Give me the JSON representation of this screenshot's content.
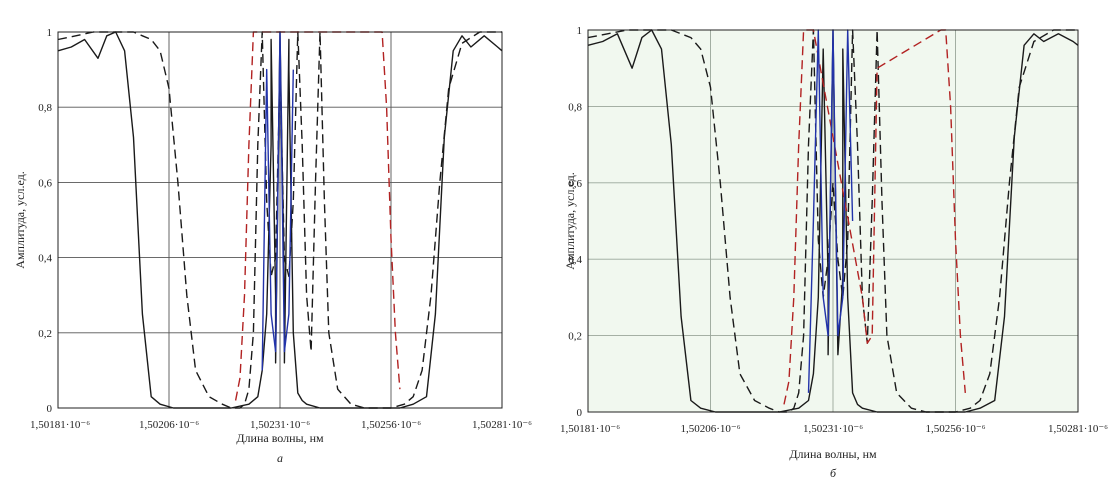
{
  "chart_data": [
    {
      "type": "line",
      "panel_label": "а",
      "xlabel": "Длина волны, нм",
      "ylabel": "Амплитуда, усл.ед.",
      "xlim": [
        1.50181,
        1.50281
      ],
      "ylim": [
        0,
        1
      ],
      "x_ticks": [
        1.50181,
        1.50206,
        1.50231,
        1.50256,
        1.50281
      ],
      "x_tick_labels": [
        "1,50181·10⁻⁶",
        "1,50206·10⁻⁶",
        "1,50231·10⁻⁶",
        "1,50256·10⁻⁶",
        "1,50281·10⁻⁶"
      ],
      "y_ticks": [
        0,
        0.2,
        0.4,
        0.6,
        0.8,
        1
      ],
      "y_tick_labels": [
        "0",
        "0,2",
        "0,4",
        "0,6",
        "0,8",
        "1"
      ],
      "background": "#ffffff",
      "grid": true,
      "series": [
        {
          "style": "solid",
          "color": "#1a1a1a",
          "x": [
            1.50181,
            1.50184,
            1.50187,
            1.5019,
            1.50192,
            1.50194,
            1.50196,
            1.50198,
            1.502,
            1.50202,
            1.50204,
            1.50207,
            1.5021,
            1.50215,
            1.5022,
            1.50224,
            1.50226,
            1.50227,
            1.50228,
            1.50229,
            1.50229,
            1.5023,
            1.5023,
            1.50231,
            1.50232,
            1.50232,
            1.50233,
            1.50233,
            1.50234,
            1.50235,
            1.50236,
            1.50237,
            1.5024,
            1.50245,
            1.5025,
            1.50255,
            1.50258,
            1.50261,
            1.50264,
            1.50266,
            1.50268,
            1.5027,
            1.50272,
            1.50274,
            1.50277,
            1.5028,
            1.50281
          ],
          "y": [
            0.95,
            0.96,
            0.98,
            0.93,
            0.99,
            1.0,
            0.95,
            0.72,
            0.25,
            0.03,
            0.01,
            0.0,
            0.0,
            0.0,
            0.0,
            0.01,
            0.03,
            0.1,
            0.25,
            0.7,
            0.98,
            0.3,
            0.12,
            1.0,
            0.3,
            0.12,
            0.98,
            0.9,
            0.2,
            0.04,
            0.02,
            0.01,
            0.0,
            0.0,
            0.0,
            0.0,
            0.0,
            0.01,
            0.03,
            0.25,
            0.72,
            0.95,
            0.99,
            0.96,
            0.99,
            0.96,
            0.95
          ]
        },
        {
          "style": "dashed",
          "color": "#1a1a1a",
          "x": [
            1.50181,
            1.50185,
            1.50189,
            1.50193,
            1.50196,
            1.50198,
            1.502,
            1.50202,
            1.50204,
            1.50206,
            1.50208,
            1.5021,
            1.50212,
            1.50215,
            1.50218,
            1.5022,
            1.50222,
            1.50223,
            1.50224,
            1.50225,
            1.50226,
            1.50227,
            1.50228,
            1.50229,
            1.5023,
            1.50231,
            1.50232,
            1.50233,
            1.50234,
            1.50235,
            1.50236,
            1.50237,
            1.50238,
            1.50239,
            1.5024,
            1.50241,
            1.50242,
            1.50244,
            1.50247,
            1.5025,
            1.50253,
            1.50256,
            1.50259,
            1.50261,
            1.50263,
            1.50265,
            1.50267,
            1.50269,
            1.50272,
            1.50276,
            1.50281
          ],
          "y": [
            0.98,
            0.99,
            1.0,
            1.0,
            1.0,
            1.0,
            0.99,
            0.98,
            0.95,
            0.85,
            0.6,
            0.3,
            0.1,
            0.03,
            0.01,
            0.0,
            0.0,
            0.01,
            0.05,
            0.2,
            0.7,
            1.0,
            0.55,
            0.35,
            0.4,
            0.9,
            0.4,
            0.35,
            0.55,
            1.0,
            0.7,
            0.3,
            0.15,
            0.6,
            1.0,
            0.55,
            0.2,
            0.05,
            0.01,
            0.0,
            0.0,
            0.0,
            0.01,
            0.03,
            0.1,
            0.3,
            0.6,
            0.85,
            0.97,
            1.0,
            1.0
          ]
        },
        {
          "style": "dashed",
          "color": "#b22222",
          "x": [
            1.50221,
            1.50222,
            1.50223,
            1.50224,
            1.50225,
            1.50226,
            1.50227,
            1.50253,
            1.50254,
            1.50255,
            1.50256,
            1.50257,
            1.50258
          ],
          "y": [
            0.02,
            0.08,
            0.3,
            0.7,
            1.0,
            1.0,
            1.0,
            1.0,
            1.0,
            0.8,
            0.45,
            0.2,
            0.05
          ]
        },
        {
          "style": "solid",
          "color": "#2233aa",
          "x": [
            1.50227,
            1.50228,
            1.50229,
            1.5023,
            1.50231,
            1.50232,
            1.50233,
            1.50234
          ],
          "y": [
            0.1,
            0.9,
            0.25,
            0.15,
            1.0,
            0.15,
            0.25,
            0.9
          ]
        }
      ]
    },
    {
      "type": "line",
      "panel_label": "б",
      "xlabel": "Длина волны, нм",
      "ylabel": "Амплитуда, усл.ед.",
      "xlim": [
        1.50181,
        1.50281
      ],
      "ylim": [
        0,
        1
      ],
      "x_ticks": [
        1.50181,
        1.50206,
        1.50231,
        1.50256,
        1.50281
      ],
      "x_tick_labels": [
        "1,50181·10⁻⁶",
        "1,50206·10⁻⁶",
        "1,50231·10⁻⁶",
        "1,50256·10⁻⁶",
        "1,50281·10⁻⁶"
      ],
      "y_ticks": [
        0,
        0.2,
        0.4,
        0.6,
        0.8,
        1
      ],
      "y_tick_labels": [
        "0",
        "0,2",
        "0,4",
        "0,6",
        "0,8",
        "1"
      ],
      "background": "#f1f8ef",
      "grid": true,
      "series": [
        {
          "style": "solid",
          "color": "#1a1a1a",
          "x": [
            1.50181,
            1.50184,
            1.50187,
            1.5019,
            1.50192,
            1.50194,
            1.50196,
            1.50198,
            1.502,
            1.50202,
            1.50204,
            1.50207,
            1.5021,
            1.50215,
            1.5022,
            1.50224,
            1.50226,
            1.50227,
            1.50228,
            1.50229,
            1.5023,
            1.5023,
            1.50231,
            1.50232,
            1.50233,
            1.50233,
            1.50234,
            1.50235,
            1.50236,
            1.50237,
            1.5024,
            1.50245,
            1.5025,
            1.50255,
            1.50258,
            1.50261,
            1.50264,
            1.50266,
            1.50268,
            1.5027,
            1.50272,
            1.50274,
            1.50277,
            1.5028,
            1.50281
          ],
          "y": [
            0.96,
            0.97,
            0.99,
            0.9,
            0.98,
            1.0,
            0.95,
            0.7,
            0.25,
            0.03,
            0.01,
            0.0,
            0.0,
            0.0,
            0.0,
            0.01,
            0.03,
            0.1,
            0.3,
            0.95,
            0.35,
            0.15,
            1.0,
            0.15,
            0.35,
            0.95,
            0.3,
            0.05,
            0.02,
            0.01,
            0.0,
            0.0,
            0.0,
            0.0,
            0.0,
            0.01,
            0.03,
            0.25,
            0.72,
            0.96,
            0.99,
            0.97,
            0.99,
            0.97,
            0.96
          ]
        },
        {
          "style": "dashed",
          "color": "#1a1a1a",
          "x": [
            1.50181,
            1.50185,
            1.50189,
            1.50193,
            1.50196,
            1.50198,
            1.502,
            1.50202,
            1.50204,
            1.50206,
            1.50208,
            1.5021,
            1.50212,
            1.50215,
            1.50218,
            1.5022,
            1.50222,
            1.50223,
            1.50224,
            1.50225,
            1.50226,
            1.50227,
            1.50228,
            1.50229,
            1.5023,
            1.50231,
            1.50232,
            1.50233,
            1.50234,
            1.50235,
            1.50236,
            1.50237,
            1.50238,
            1.50239,
            1.5024,
            1.50241,
            1.50242,
            1.50244,
            1.50247,
            1.5025,
            1.50253,
            1.50256,
            1.50259,
            1.50261,
            1.50263,
            1.50265,
            1.50267,
            1.50269,
            1.50272,
            1.50276,
            1.50281
          ],
          "y": [
            0.98,
            0.99,
            1.0,
            1.0,
            1.0,
            1.0,
            0.99,
            0.98,
            0.95,
            0.85,
            0.6,
            0.3,
            0.1,
            0.03,
            0.01,
            0.0,
            0.0,
            0.01,
            0.05,
            0.2,
            0.7,
            1.0,
            0.45,
            0.3,
            0.4,
            0.6,
            0.4,
            0.3,
            0.45,
            1.0,
            0.7,
            0.3,
            0.18,
            0.55,
            1.0,
            0.55,
            0.2,
            0.05,
            0.01,
            0.0,
            0.0,
            0.0,
            0.01,
            0.03,
            0.1,
            0.3,
            0.6,
            0.85,
            0.97,
            1.0,
            1.0
          ]
        },
        {
          "style": "dashed",
          "color": "#b22222",
          "x": [
            1.50221,
            1.50222,
            1.50223,
            1.50224,
            1.50225,
            1.50226,
            1.50227,
            1.50237,
            1.50238,
            1.50239,
            1.5024,
            1.50253,
            1.50254,
            1.50255,
            1.50256,
            1.50257,
            1.50258
          ],
          "y": [
            0.02,
            0.08,
            0.3,
            0.7,
            1.0,
            1.0,
            1.0,
            0.3,
            0.18,
            0.2,
            0.9,
            1.0,
            1.0,
            0.8,
            0.45,
            0.2,
            0.05
          ]
        },
        {
          "style": "solid",
          "color": "#2233aa",
          "x": [
            1.50226,
            1.50227,
            1.50228,
            1.50229,
            1.5023,
            1.50231,
            1.50232,
            1.50233,
            1.50234,
            1.50235
          ],
          "y": [
            0.05,
            0.5,
            1.0,
            0.3,
            0.2,
            1.0,
            0.2,
            0.3,
            1.0,
            0.5
          ]
        }
      ]
    }
  ]
}
